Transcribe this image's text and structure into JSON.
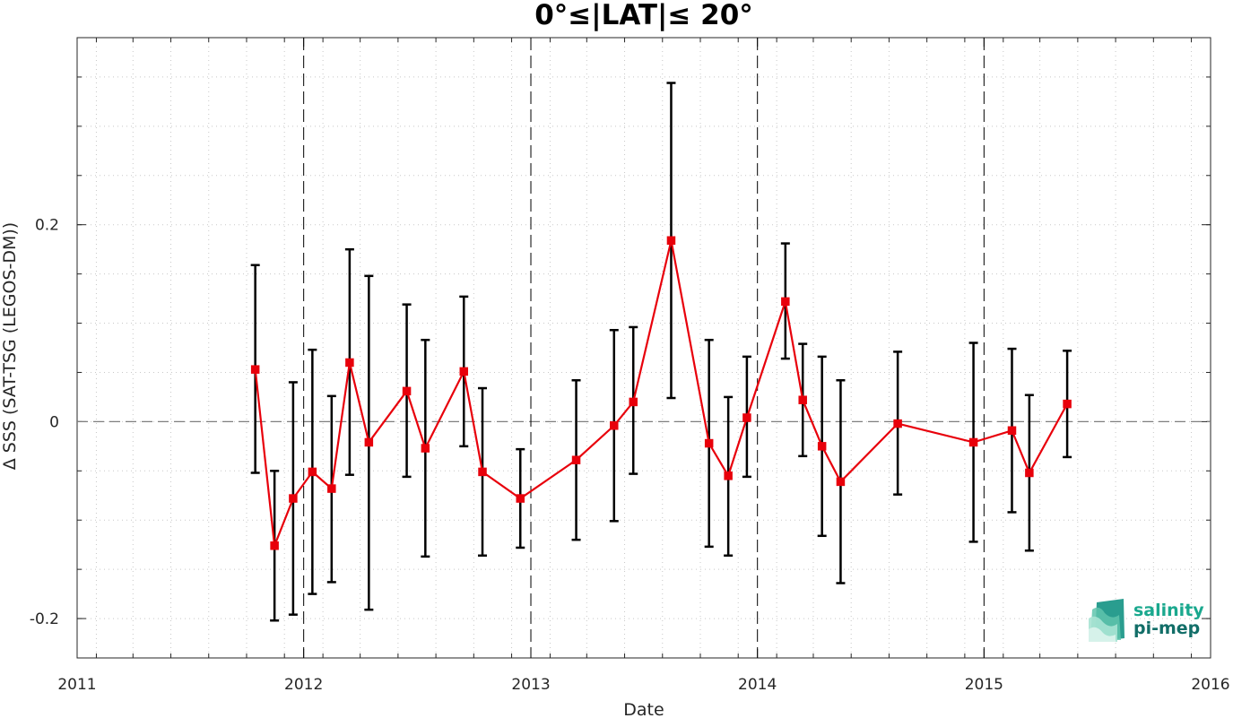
{
  "chart_data": {
    "type": "line",
    "title": "0°≤|LAT|≤ 20°",
    "xlabel": "Date",
    "ylabel": "Δ SSS (SAT-TSG (LEGOS-DM))",
    "xlim": [
      "2011-01-01",
      "2016-01-01"
    ],
    "ylim": [
      -0.24,
      0.39
    ],
    "x_ticks": [
      "2011",
      "2012",
      "2013",
      "2014",
      "2015",
      "2016"
    ],
    "y_ticks": [
      {
        "value": -0.2,
        "label": "-0.2"
      },
      {
        "value": 0,
        "label": "0"
      },
      {
        "value": 0.2,
        "label": "0.2"
      }
    ],
    "grid": true,
    "reference_line_y": 0,
    "year_separators": [
      "2012",
      "2013",
      "2014",
      "2015"
    ],
    "series": [
      {
        "color": "#e8000b",
        "marker": "square",
        "errorbar_color": "#000000",
        "points": [
          {
            "x": "2011-10-15",
            "y": 0.053,
            "lo": -0.052,
            "hi": 0.159
          },
          {
            "x": "2011-11-15",
            "y": -0.126,
            "lo": -0.202,
            "hi": -0.05
          },
          {
            "x": "2011-12-15",
            "y": -0.078,
            "lo": -0.196,
            "hi": 0.04
          },
          {
            "x": "2012-01-15",
            "y": -0.051,
            "lo": -0.175,
            "hi": 0.073
          },
          {
            "x": "2012-02-15",
            "y": -0.068,
            "lo": -0.163,
            "hi": 0.026
          },
          {
            "x": "2012-03-15",
            "y": 0.06,
            "lo": -0.054,
            "hi": 0.175
          },
          {
            "x": "2012-04-15",
            "y": -0.021,
            "lo": -0.191,
            "hi": 0.148
          },
          {
            "x": "2012-06-15",
            "y": 0.031,
            "lo": -0.056,
            "hi": 0.119
          },
          {
            "x": "2012-07-15",
            "y": -0.027,
            "lo": -0.137,
            "hi": 0.083
          },
          {
            "x": "2012-09-15",
            "y": 0.051,
            "lo": -0.025,
            "hi": 0.127
          },
          {
            "x": "2012-10-15",
            "y": -0.051,
            "lo": -0.136,
            "hi": 0.034
          },
          {
            "x": "2012-12-15",
            "y": -0.078,
            "lo": -0.128,
            "hi": -0.028
          },
          {
            "x": "2013-03-15",
            "y": -0.039,
            "lo": -0.12,
            "hi": 0.042
          },
          {
            "x": "2013-05-15",
            "y": -0.004,
            "lo": -0.101,
            "hi": 0.093
          },
          {
            "x": "2013-06-15",
            "y": 0.02,
            "lo": -0.053,
            "hi": 0.096
          },
          {
            "x": "2013-08-15",
            "y": 0.184,
            "lo": 0.024,
            "hi": 0.344
          },
          {
            "x": "2013-10-15",
            "y": -0.022,
            "lo": -0.127,
            "hi": 0.083
          },
          {
            "x": "2013-11-15",
            "y": -0.055,
            "lo": -0.136,
            "hi": 0.025
          },
          {
            "x": "2013-12-15",
            "y": 0.004,
            "lo": -0.056,
            "hi": 0.066
          },
          {
            "x": "2014-02-15",
            "y": 0.122,
            "lo": 0.064,
            "hi": 0.181
          },
          {
            "x": "2014-03-15",
            "y": 0.022,
            "lo": -0.035,
            "hi": 0.079
          },
          {
            "x": "2014-04-15",
            "y": -0.025,
            "lo": -0.116,
            "hi": 0.066
          },
          {
            "x": "2014-05-15",
            "y": -0.061,
            "lo": -0.164,
            "hi": 0.042
          },
          {
            "x": "2014-08-15",
            "y": -0.002,
            "lo": -0.074,
            "hi": 0.071
          },
          {
            "x": "2014-12-15",
            "y": -0.021,
            "lo": -0.122,
            "hi": 0.08
          },
          {
            "x": "2015-02-15",
            "y": -0.009,
            "lo": -0.092,
            "hi": 0.074
          },
          {
            "x": "2015-03-15",
            "y": -0.052,
            "lo": -0.131,
            "hi": 0.027
          },
          {
            "x": "2015-05-15",
            "y": 0.018,
            "lo": -0.036,
            "hi": 0.072
          }
        ]
      }
    ]
  },
  "logo": {
    "line1": "salinity",
    "line2": "pi-mep",
    "color_line1": "#1aa88e",
    "color_line2": "#126e68"
  }
}
